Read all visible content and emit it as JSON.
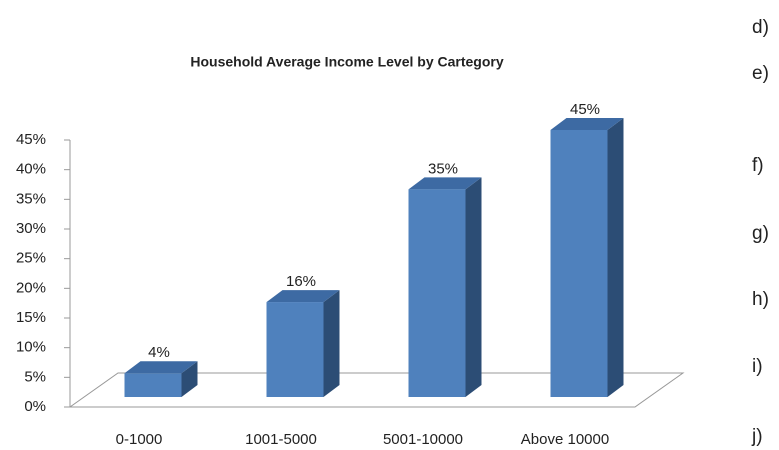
{
  "chart_data": {
    "type": "bar3d",
    "title": "Household Average  Income Level by Cartegory",
    "categories": [
      "0-1000",
      "1001-5000",
      "5001-10000",
      "Above 10000"
    ],
    "values": [
      4,
      16,
      35,
      45
    ],
    "value_labels": [
      "4%",
      "16%",
      "35%",
      "45%"
    ],
    "color": "#4f81bd",
    "ylim": [
      0,
      45
    ],
    "yticks": [
      {
        "value": 0,
        "label": "0%"
      },
      {
        "value": 5,
        "label": "5%"
      },
      {
        "value": 10,
        "label": "10%"
      },
      {
        "value": 15,
        "label": "15%"
      },
      {
        "value": 20,
        "label": "20%"
      },
      {
        "value": 25,
        "label": "25%"
      },
      {
        "value": 30,
        "label": "30%"
      },
      {
        "value": 35,
        "label": "35%"
      },
      {
        "value": 40,
        "label": "40%"
      },
      {
        "value": 45,
        "label": "45%"
      }
    ],
    "grid": false
  },
  "side_labels": [
    "d)",
    "e)",
    "f)",
    "g)",
    "h)",
    "i)",
    "j)"
  ]
}
